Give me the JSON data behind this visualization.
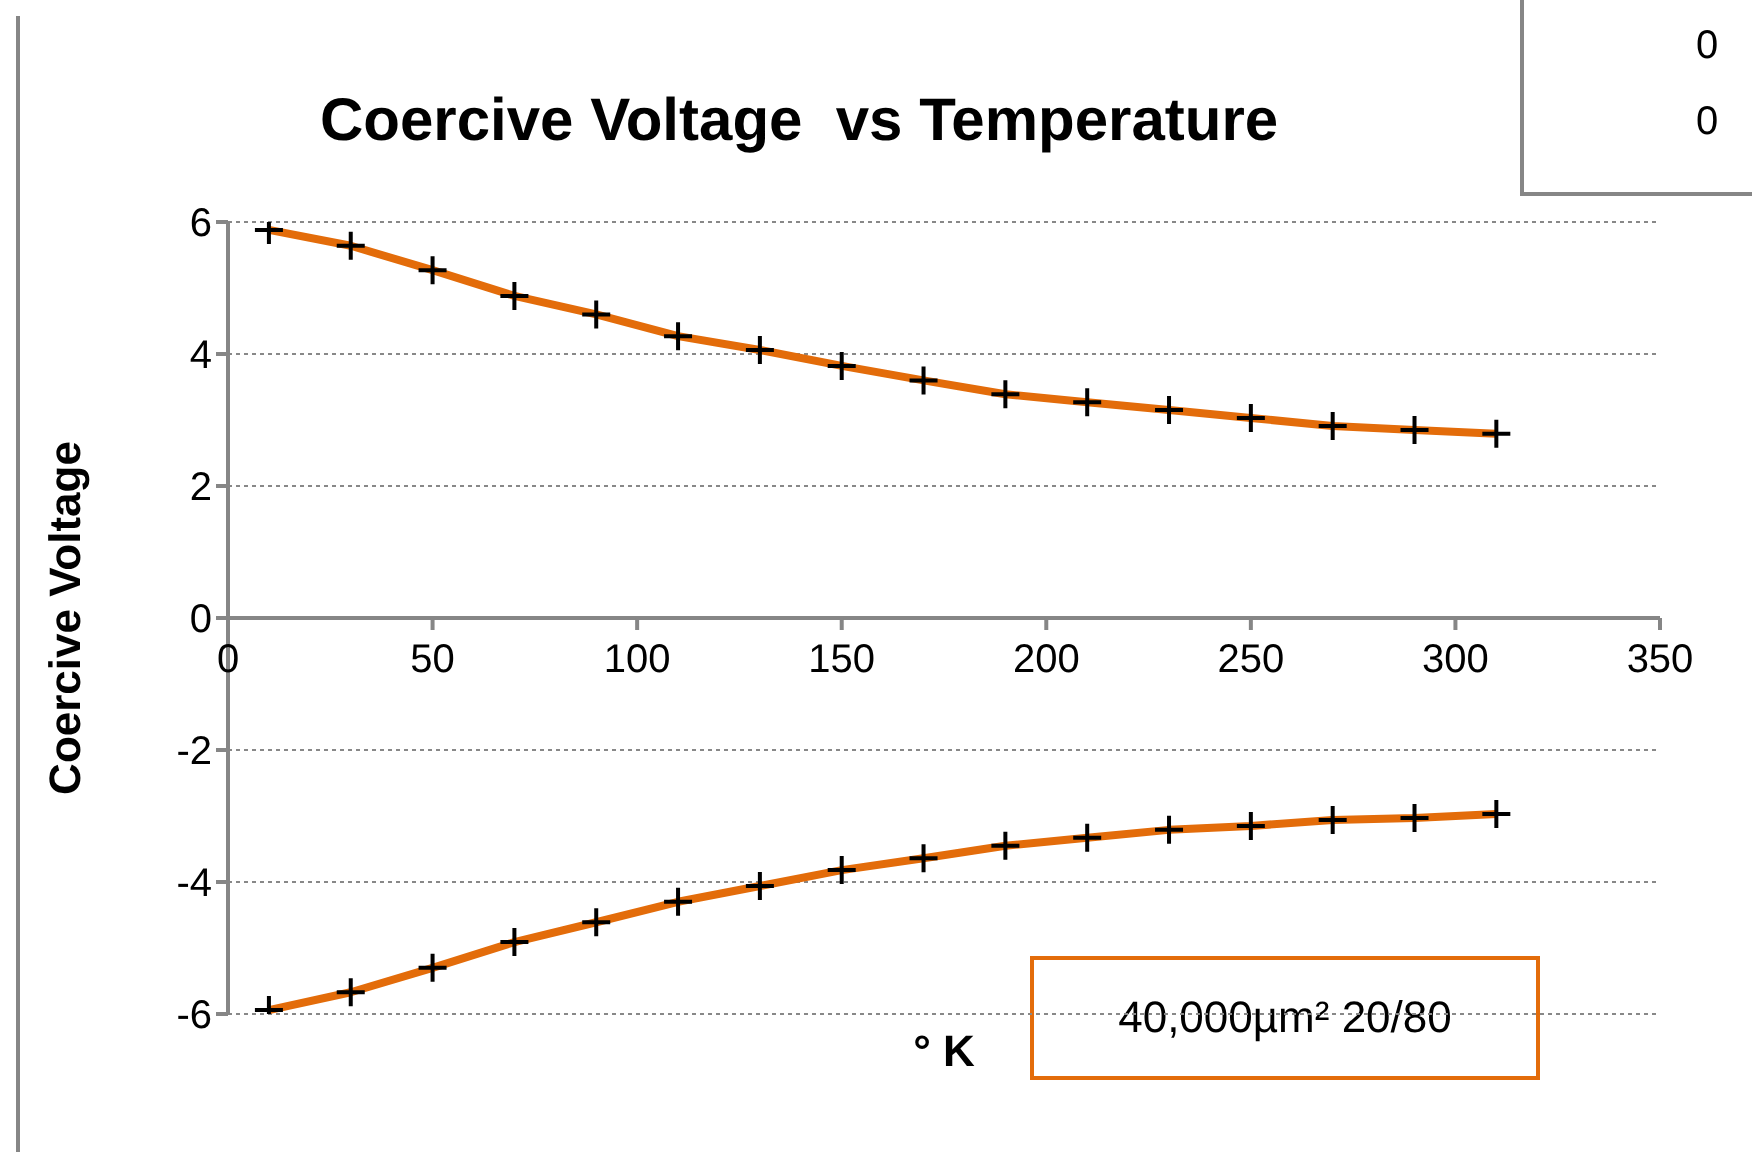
{
  "chart_data": {
    "type": "line",
    "title": "Coercive Voltage  vs Temperature",
    "xlabel": "° K",
    "ylabel": "Coercive Voltage",
    "x": [
      10,
      30,
      50,
      70,
      90,
      110,
      130,
      150,
      170,
      190,
      210,
      230,
      250,
      270,
      290,
      310
    ],
    "series": [
      {
        "color": "#e36c0a",
        "values": [
          5.88,
          5.64,
          5.27,
          4.88,
          4.6,
          4.27,
          4.06,
          3.82,
          3.6,
          3.39,
          3.27,
          3.15,
          3.03,
          2.91,
          2.85,
          2.79
        ]
      },
      {
        "color": "#e36c0a",
        "values": [
          -5.94,
          -5.67,
          -5.3,
          -4.91,
          -4.61,
          -4.3,
          -4.06,
          -3.82,
          -3.64,
          -3.45,
          -3.33,
          -3.21,
          -3.15,
          -3.06,
          -3.03,
          -2.97
        ]
      }
    ],
    "xlim": [
      0,
      350
    ],
    "xticks": [
      0,
      50,
      100,
      150,
      200,
      250,
      300,
      350
    ],
    "ylim": [
      -6,
      6
    ],
    "yticks": [
      -6,
      -4,
      -2,
      0,
      2,
      4,
      6
    ],
    "grid": "y",
    "marker": "cross",
    "line_style": "solid",
    "annotations": [
      "0",
      "0",
      "40,000µm² 20/80"
    ]
  }
}
